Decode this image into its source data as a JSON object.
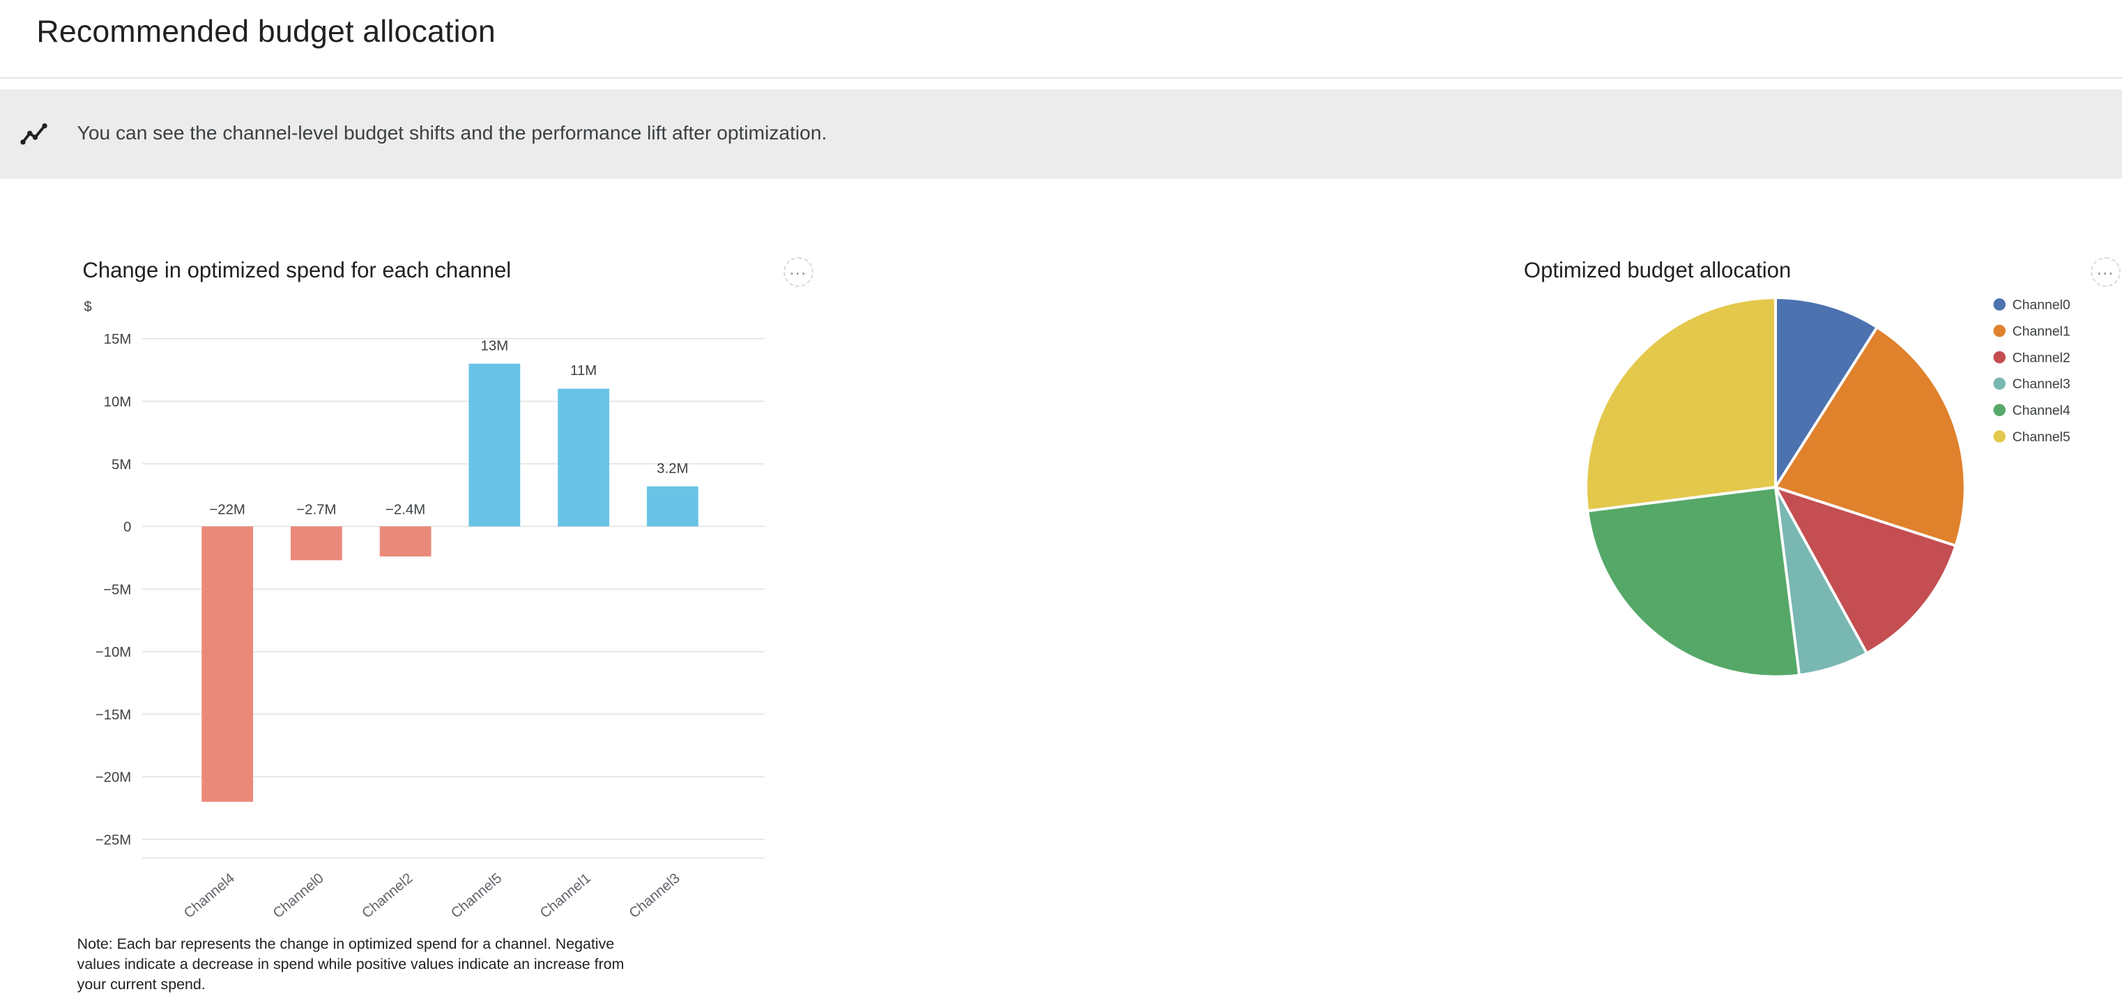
{
  "page": {
    "title": "Recommended budget allocation"
  },
  "banner": {
    "icon": "insights-icon",
    "text": "You can see the channel-level budget shifts and the performance lift after optimization."
  },
  "icons": {
    "more_options": "⋯"
  },
  "colors": {
    "banner_bg": "#ececec",
    "positive_bar": "#68c3e6",
    "negative_bar": "#ea897a",
    "gridline": "#e7e7e7",
    "tick_text": "#424242",
    "category_text": "#5f6368"
  },
  "spend_chart": {
    "title": "Change in optimized spend for each channel",
    "note": "Note: Each bar represents the change in optimized spend for a channel. Negative values indicate a decrease in spend while positive values indicate an increase from your current spend."
  },
  "allocation_chart": {
    "title": "Optimized budget allocation"
  },
  "chart_data": [
    {
      "type": "bar",
      "title": "Change in optimized spend for each channel",
      "xlabel": "",
      "ylabel": "$",
      "categories": [
        "Channel4",
        "Channel0",
        "Channel2",
        "Channel5",
        "Channel1",
        "Channel3"
      ],
      "values": [
        -22,
        -2.7,
        -2.4,
        13,
        11,
        3.2
      ],
      "value_labels": [
        "−22M",
        "−2.7M",
        "−2.4M",
        "13M",
        "11M",
        "3.2M"
      ],
      "unit": "M",
      "grid": true,
      "ylim": [
        -26.5,
        16.5
      ],
      "yticks": [
        15,
        10,
        5,
        0,
        -5,
        -10,
        -15,
        -20,
        -25
      ],
      "ytick_labels": [
        "15M",
        "10M",
        "5M",
        "0",
        "−5M",
        "−10M",
        "−15M",
        "−20M",
        "−25M"
      ],
      "positive_color": "#68c3e6",
      "negative_color": "#ea897a"
    },
    {
      "type": "pie",
      "title": "Optimized budget allocation",
      "labels": [
        "Channel0",
        "Channel1",
        "Channel2",
        "Channel3",
        "Channel4",
        "Channel5"
      ],
      "values_percent": [
        9,
        21,
        12,
        6,
        25,
        27
      ],
      "colors": [
        "#4c72b0",
        "#e0812c",
        "#c44e52",
        "#79b7b2",
        "#55a868",
        "#e3c84c"
      ],
      "legend_position": "right"
    }
  ]
}
